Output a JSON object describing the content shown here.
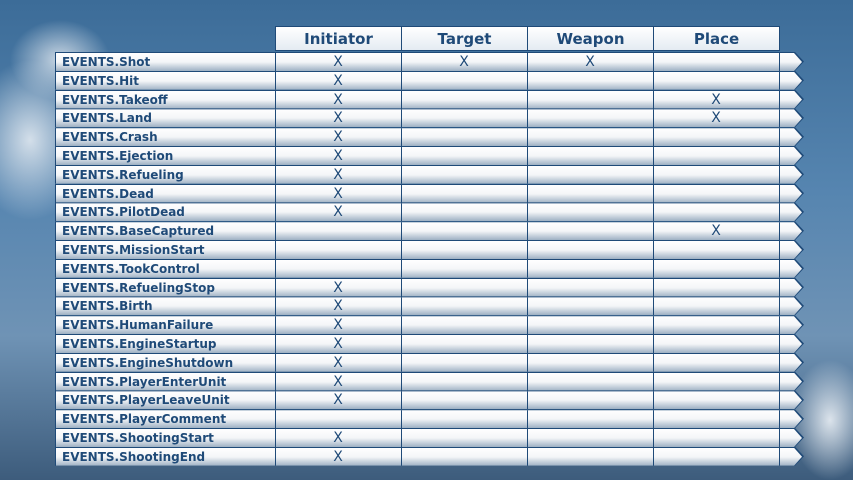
{
  "columns": [
    "Initiator",
    "Target",
    "Weapon",
    "Place"
  ],
  "mark": "X",
  "rows": [
    {
      "event": "EVENTS.Shot",
      "marks": [
        true,
        true,
        true,
        false
      ]
    },
    {
      "event": "EVENTS.Hit",
      "marks": [
        true,
        false,
        false,
        false
      ]
    },
    {
      "event": "EVENTS.Takeoff",
      "marks": [
        true,
        false,
        false,
        true
      ]
    },
    {
      "event": "EVENTS.Land",
      "marks": [
        true,
        false,
        false,
        true
      ]
    },
    {
      "event": "EVENTS.Crash",
      "marks": [
        true,
        false,
        false,
        false
      ]
    },
    {
      "event": "EVENTS.Ejection",
      "marks": [
        true,
        false,
        false,
        false
      ]
    },
    {
      "event": "EVENTS.Refueling",
      "marks": [
        true,
        false,
        false,
        false
      ]
    },
    {
      "event": "EVENTS.Dead",
      "marks": [
        true,
        false,
        false,
        false
      ]
    },
    {
      "event": "EVENTS.PilotDead",
      "marks": [
        true,
        false,
        false,
        false
      ]
    },
    {
      "event": "EVENTS.BaseCaptured",
      "marks": [
        false,
        false,
        false,
        true
      ]
    },
    {
      "event": "EVENTS.MissionStart",
      "marks": [
        false,
        false,
        false,
        false
      ]
    },
    {
      "event": "EVENTS.TookControl",
      "marks": [
        false,
        false,
        false,
        false
      ]
    },
    {
      "event": "EVENTS.RefuelingStop",
      "marks": [
        true,
        false,
        false,
        false
      ]
    },
    {
      "event": "EVENTS.Birth",
      "marks": [
        true,
        false,
        false,
        false
      ]
    },
    {
      "event": "EVENTS.HumanFailure",
      "marks": [
        true,
        false,
        false,
        false
      ]
    },
    {
      "event": "EVENTS.EngineStartup",
      "marks": [
        true,
        false,
        false,
        false
      ]
    },
    {
      "event": "EVENTS.EngineShutdown",
      "marks": [
        true,
        false,
        false,
        false
      ]
    },
    {
      "event": "EVENTS.PlayerEnterUnit",
      "marks": [
        true,
        false,
        false,
        false
      ]
    },
    {
      "event": "EVENTS.PlayerLeaveUnit",
      "marks": [
        true,
        false,
        false,
        false
      ]
    },
    {
      "event": "EVENTS.PlayerComment",
      "marks": [
        false,
        false,
        false,
        false
      ]
    },
    {
      "event": "EVENTS.ShootingStart",
      "marks": [
        true,
        false,
        false,
        false
      ]
    },
    {
      "event": "EVENTS.ShootingEnd",
      "marks": [
        true,
        false,
        false,
        false
      ]
    }
  ]
}
